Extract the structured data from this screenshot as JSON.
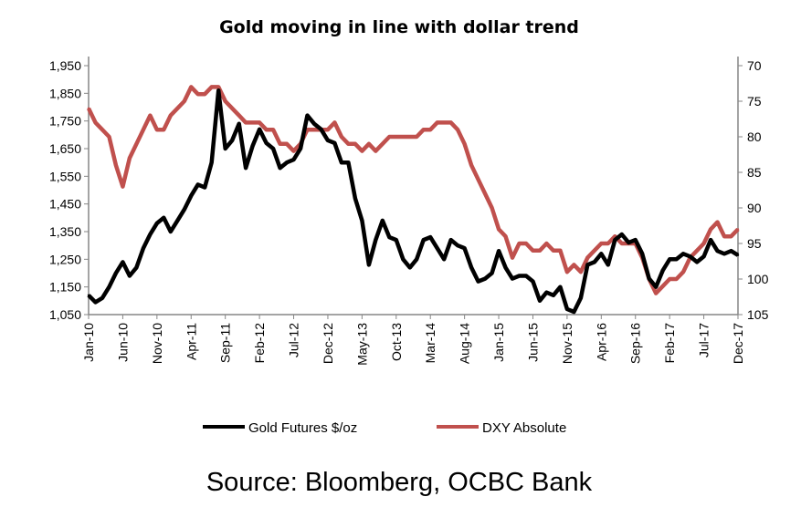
{
  "chart_data": {
    "type": "line",
    "title": "Gold moving in line with dollar trend",
    "source": "Source: Bloomberg, OCBC Bank",
    "x_ticks": [
      "Jan-10",
      "Jun-10",
      "Nov-10",
      "Apr-11",
      "Sep-11",
      "Feb-12",
      "Jul-12",
      "Dec-12",
      "May-13",
      "Oct-13",
      "Mar-14",
      "Aug-14",
      "Jan-15",
      "Jun-15",
      "Nov-15",
      "Apr-16",
      "Sep-16",
      "Feb-17",
      "Jul-17",
      "Dec-17"
    ],
    "x_start": "Jan-10",
    "x_end": "Dec-17",
    "x_frequency": "monthly",
    "y_left": {
      "ylim": [
        1050,
        1950
      ],
      "ticks": [
        "1,050",
        "1,150",
        "1,250",
        "1,350",
        "1,450",
        "1,550",
        "1,650",
        "1,750",
        "1,850",
        "1,950"
      ]
    },
    "y_right": {
      "ylim": [
        70,
        105
      ],
      "inverted": true,
      "ticks": [
        "70",
        "75",
        "80",
        "85",
        "90",
        "95",
        "100",
        "105"
      ]
    },
    "grid": false,
    "legend_position": "bottom",
    "series": [
      {
        "name": "Gold Futures $/oz",
        "axis": "left",
        "color": "#000000",
        "values": [
          1120,
          1095,
          1110,
          1150,
          1200,
          1240,
          1190,
          1220,
          1290,
          1340,
          1380,
          1400,
          1350,
          1390,
          1430,
          1480,
          1520,
          1510,
          1600,
          1860,
          1650,
          1680,
          1740,
          1580,
          1660,
          1720,
          1670,
          1650,
          1580,
          1600,
          1610,
          1650,
          1770,
          1740,
          1720,
          1680,
          1670,
          1600,
          1600,
          1470,
          1390,
          1230,
          1320,
          1390,
          1330,
          1320,
          1250,
          1220,
          1250,
          1320,
          1330,
          1290,
          1250,
          1320,
          1300,
          1290,
          1220,
          1170,
          1180,
          1200,
          1280,
          1220,
          1180,
          1190,
          1190,
          1170,
          1100,
          1130,
          1120,
          1150,
          1070,
          1060,
          1110,
          1230,
          1240,
          1270,
          1230,
          1320,
          1340,
          1310,
          1320,
          1270,
          1180,
          1150,
          1210,
          1250,
          1250,
          1270,
          1260,
          1240,
          1260,
          1320,
          1280,
          1270,
          1280,
          1265
        ]
      },
      {
        "name": "DXY Absolute",
        "axis": "right",
        "color": "#c0504d",
        "values": [
          76,
          78,
          79,
          80,
          84,
          87,
          83,
          81,
          79,
          77,
          79,
          79,
          77,
          76,
          75,
          73,
          74,
          74,
          73,
          73,
          75,
          76,
          77,
          78,
          78,
          78,
          79,
          79,
          81,
          81,
          82,
          81,
          79,
          79,
          79,
          79,
          78,
          80,
          81,
          81,
          82,
          81,
          82,
          81,
          80,
          80,
          80,
          80,
          80,
          79,
          79,
          78,
          78,
          78,
          79,
          81,
          84,
          86,
          88,
          90,
          93,
          94,
          97,
          95,
          95,
          96,
          96,
          95,
          96,
          96,
          99,
          98,
          99,
          97,
          96,
          95,
          95,
          94,
          95,
          95,
          95,
          97,
          100,
          102,
          101,
          100,
          100,
          99,
          97,
          96,
          95,
          93,
          92,
          94,
          94,
          93
        ]
      }
    ]
  }
}
